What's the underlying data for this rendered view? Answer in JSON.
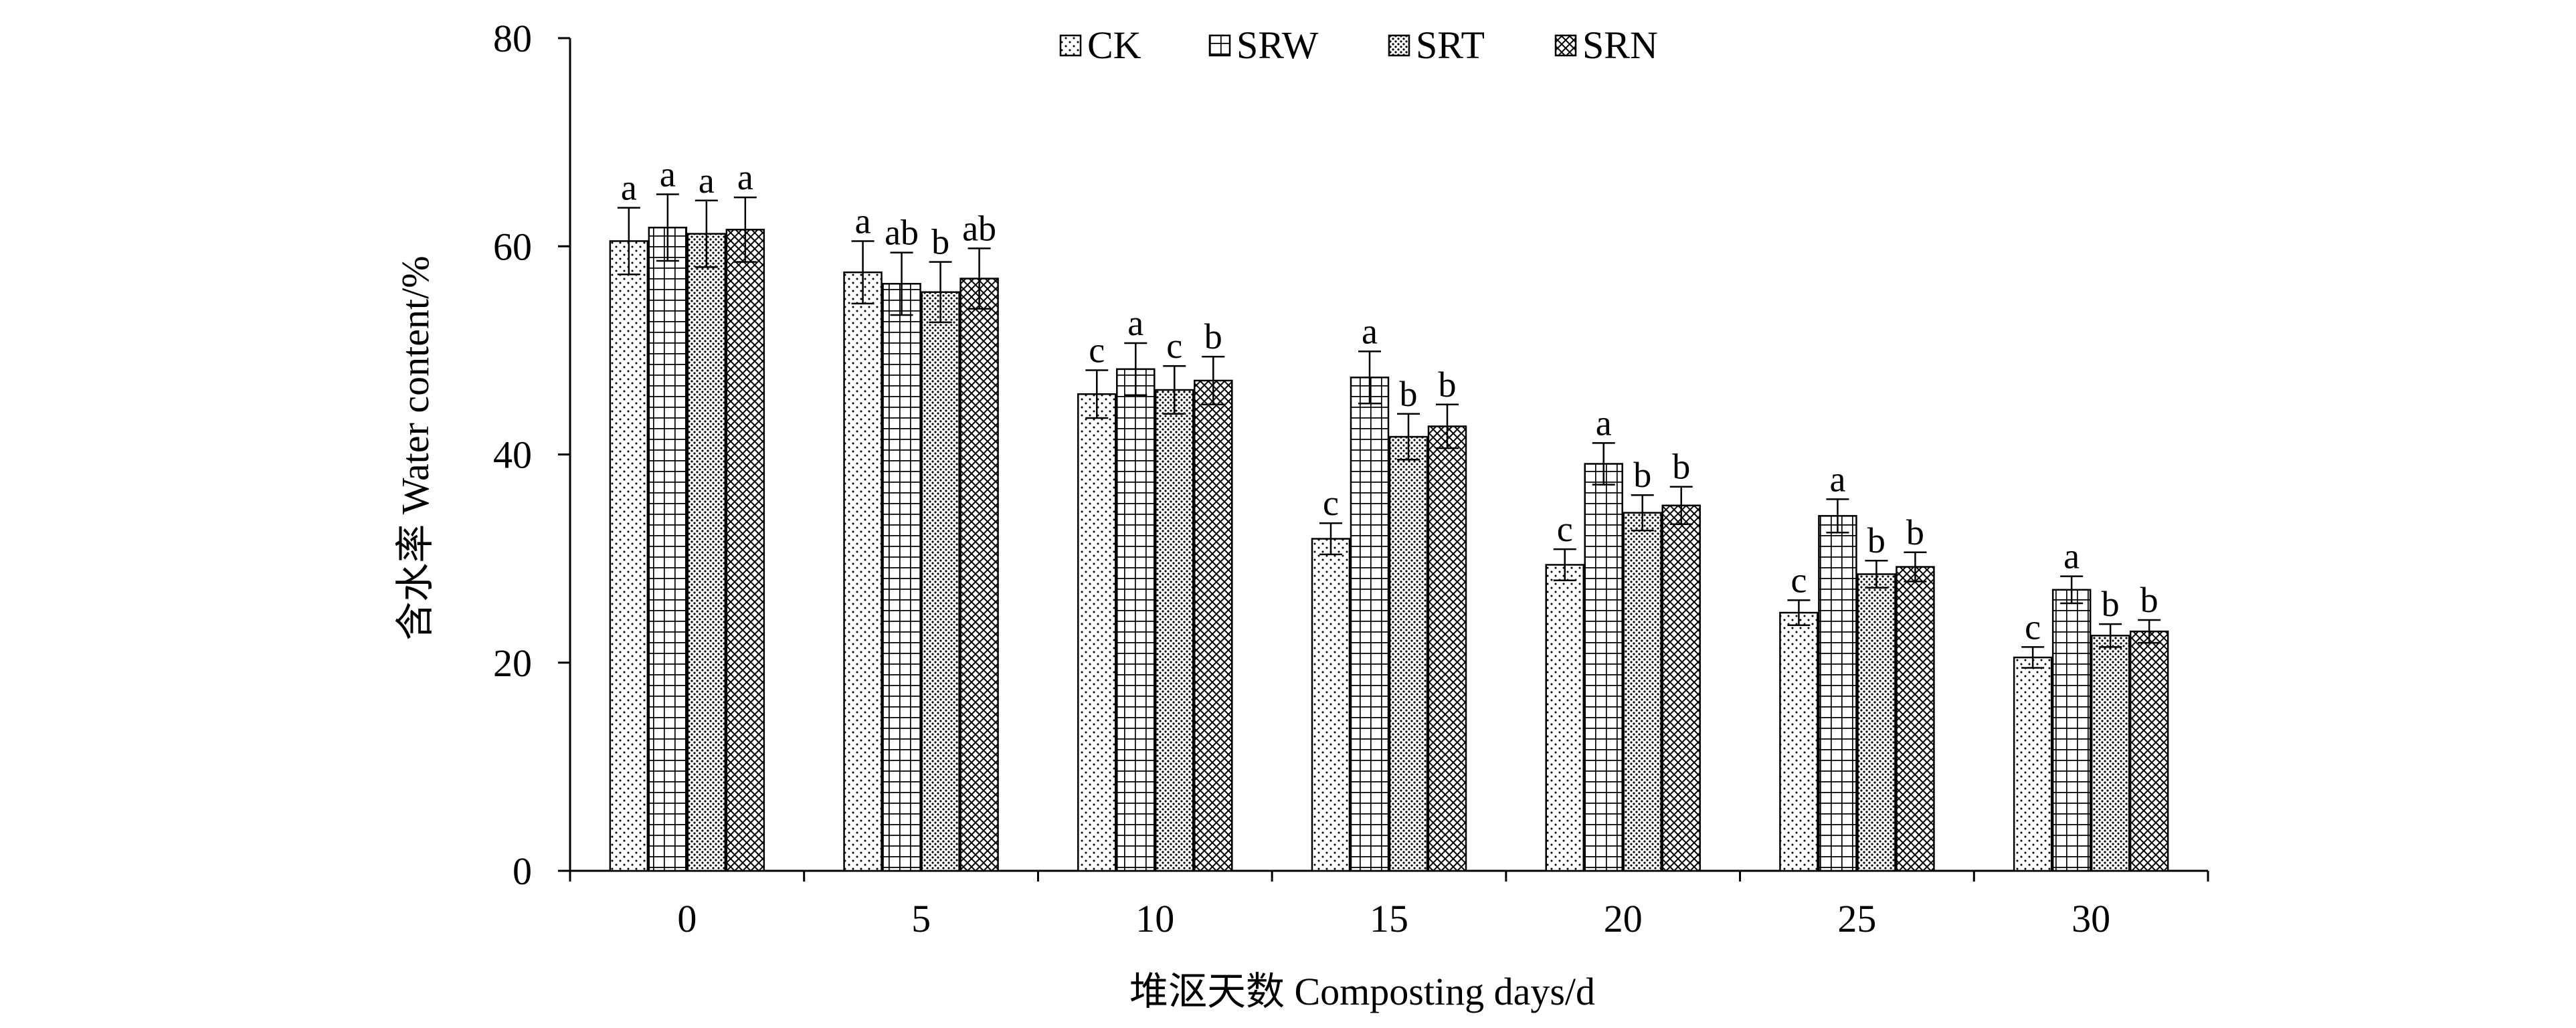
{
  "chart_data": {
    "type": "bar",
    "xlabel": "堆沤天数 Composting days/d",
    "ylabel": "含水率 Water content/%",
    "ylim": [
      0,
      80
    ],
    "yticks": [
      0,
      20,
      40,
      60,
      80
    ],
    "categories": [
      "0",
      "5",
      "10",
      "15",
      "20",
      "25",
      "30"
    ],
    "legend_position": "top-center",
    "grid": false,
    "series": [
      {
        "name": "CK",
        "pattern": "dots",
        "values": [
          60.5,
          57.5,
          45.8,
          31.9,
          29.4,
          24.8,
          20.5
        ],
        "errors": [
          3.2,
          3.0,
          2.3,
          1.5,
          1.5,
          1.2,
          1.0
        ],
        "letters": [
          "a",
          "a",
          "c",
          "c",
          "c",
          "c",
          "c"
        ]
      },
      {
        "name": "SRW",
        "pattern": "grid",
        "values": [
          61.8,
          56.4,
          48.2,
          47.4,
          39.1,
          34.1,
          27.0
        ],
        "errors": [
          3.2,
          3.0,
          2.5,
          2.5,
          2.0,
          1.6,
          1.3
        ],
        "letters": [
          "a",
          "ab",
          "a",
          "a",
          "a",
          "a",
          "a"
        ]
      },
      {
        "name": "SRT",
        "pattern": "dense-dots",
        "values": [
          61.2,
          55.6,
          46.2,
          41.7,
          34.4,
          28.5,
          22.6
        ],
        "errors": [
          3.2,
          2.9,
          2.3,
          2.2,
          1.7,
          1.3,
          1.1
        ],
        "letters": [
          "a",
          "b",
          "c",
          "b",
          "b",
          "b",
          "b"
        ]
      },
      {
        "name": "SRN",
        "pattern": "crosshatch",
        "values": [
          61.6,
          56.9,
          47.1,
          42.7,
          35.1,
          29.2,
          23.0
        ],
        "errors": [
          3.1,
          2.9,
          2.3,
          2.1,
          1.8,
          1.4,
          1.1
        ],
        "letters": [
          "a",
          "ab",
          "b",
          "b",
          "b",
          "b",
          "b"
        ]
      }
    ]
  }
}
